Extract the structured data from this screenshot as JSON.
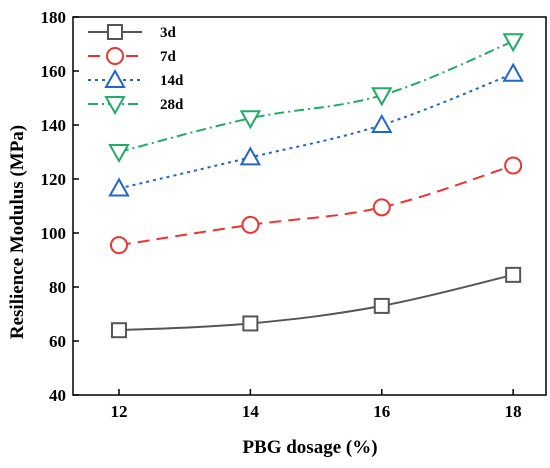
{
  "chart_data": {
    "type": "line",
    "xlabel": "PBG dosage (%)",
    "ylabel": "Resilience Modulus (MPa)",
    "x": [
      12,
      14,
      16,
      18
    ],
    "xticks": [
      "12",
      "14",
      "16",
      "18"
    ],
    "yticks": [
      "40",
      "60",
      "80",
      "100",
      "120",
      "140",
      "160",
      "180"
    ],
    "ylim": [
      40,
      180
    ],
    "legend_position": "top-left",
    "grid": false,
    "series": [
      {
        "name": "3d",
        "values": [
          64,
          66.5,
          73,
          84.5
        ],
        "color": "#555555",
        "marker": "square",
        "line": "solid"
      },
      {
        "name": "7d",
        "values": [
          95.5,
          103,
          109.5,
          125
        ],
        "color": "#ee3333",
        "marker": "circle",
        "line": "dashed"
      },
      {
        "name": "14d",
        "values": [
          116.5,
          128,
          140,
          159
        ],
        "color": "#2266cc",
        "marker": "triangle-up",
        "line": "dotted"
      },
      {
        "name": "28d",
        "values": [
          130,
          142.5,
          151,
          171
        ],
        "color": "#22aa66",
        "marker": "triangle-down",
        "line": "dashdot"
      }
    ]
  }
}
